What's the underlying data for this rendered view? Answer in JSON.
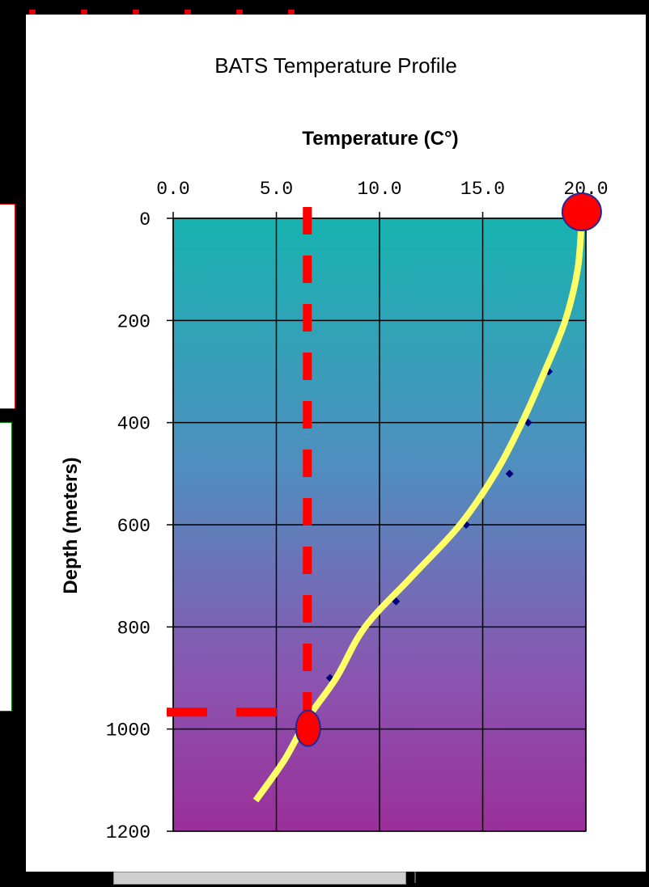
{
  "chart_data": {
    "type": "line",
    "title": "BATS Temperature Profile",
    "xlabel": "Temperature (C°)",
    "ylabel": "Depth (meters)",
    "xlim": [
      0,
      20
    ],
    "ylim": [
      0,
      1200
    ],
    "y_inverted": true,
    "x_axis_position": "top",
    "grid": true,
    "x_ticks": [
      0,
      5,
      10,
      15,
      20
    ],
    "x_tick_labels": [
      "0.0",
      "5.0",
      "10.0",
      "15.0",
      "20.0"
    ],
    "y_ticks": [
      0,
      200,
      400,
      600,
      800,
      1000,
      1200
    ],
    "y_tick_labels": [
      "0",
      "200",
      "400",
      "600",
      "800",
      "1000",
      "1200"
    ],
    "series": [
      {
        "curve": [
          {
            "x": 19.8,
            "y": 0
          },
          {
            "x": 19.6,
            "y": 100
          },
          {
            "x": 19.0,
            "y": 200
          },
          {
            "x": 18.0,
            "y": 300
          },
          {
            "x": 16.9,
            "y": 400
          },
          {
            "x": 15.6,
            "y": 500
          },
          {
            "x": 13.9,
            "y": 600
          },
          {
            "x": 11.6,
            "y": 700
          },
          {
            "x": 9.3,
            "y": 800
          },
          {
            "x": 7.9,
            "y": 900
          },
          {
            "x": 6.5,
            "y": 980
          },
          {
            "x": 5.4,
            "y": 1060
          },
          {
            "x": 4.0,
            "y": 1140
          }
        ],
        "markers": [
          {
            "x": 18.2,
            "y": 300
          },
          {
            "x": 17.2,
            "y": 400
          },
          {
            "x": 16.3,
            "y": 500
          },
          {
            "x": 14.2,
            "y": 600
          },
          {
            "x": 10.8,
            "y": 750
          },
          {
            "x": 7.6,
            "y": 900
          }
        ],
        "line_color": "#ffff66",
        "marker_color": "#00007a"
      }
    ],
    "annotations": {
      "guide_color": "#ff0000",
      "vertical_guide_x": 6.5,
      "horizontal_guide_y": 970,
      "highlight_points": [
        {
          "x": 19.8,
          "y": 0
        },
        {
          "x": 6.5,
          "y": 970
        }
      ],
      "highlight_fill": "#ff0000",
      "highlight_stroke": "#1f2a99"
    },
    "background_gradient": [
      "#17b3b0",
      "#4f8fbf",
      "#8a55b0",
      "#9b2f99"
    ]
  }
}
